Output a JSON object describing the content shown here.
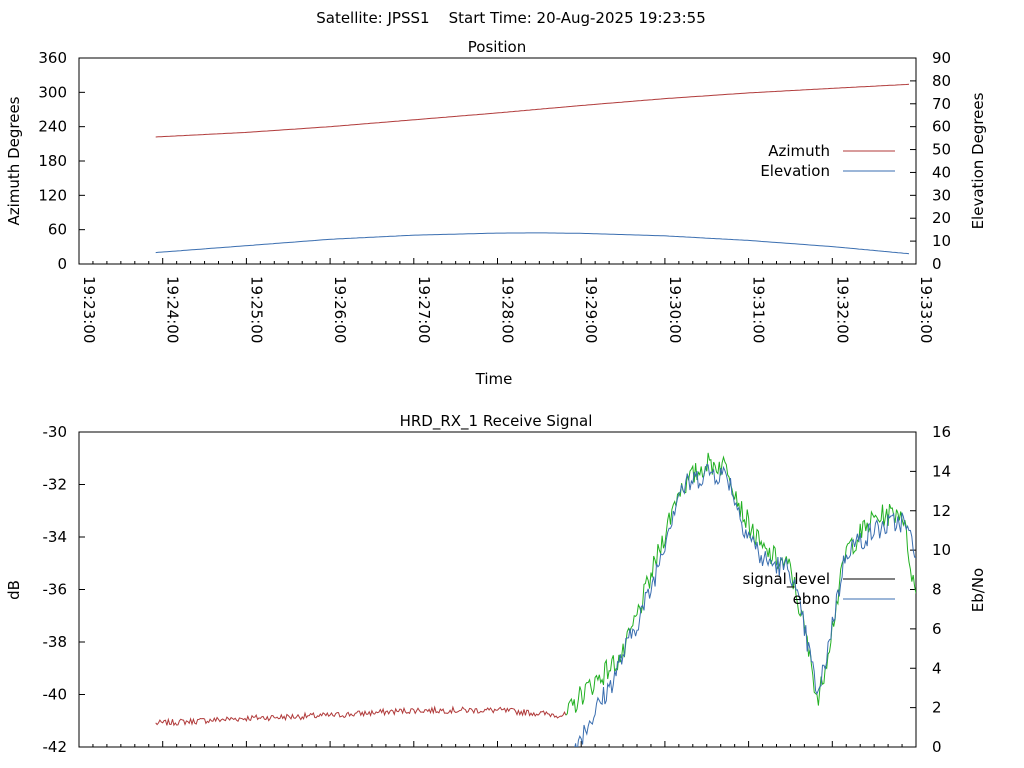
{
  "page_title": "Satellite: JPSS1    Start Time: 20-Aug-2025 19:23:55",
  "colors": {
    "azimuth": "#b03a3a",
    "elevation": "#3a6eb0",
    "signal_level_low": "#b03a3a",
    "signal_level_high": "#22b022",
    "ebno": "#3a6eb0",
    "frame": "#000000"
  },
  "chart_data": [
    {
      "type": "line",
      "title": "Position",
      "xlabel": "Time",
      "ylabel": "Azimuth Degrees",
      "y2label": "Elevation Degrees",
      "ylim": [
        0,
        360
      ],
      "y2lim": [
        0,
        90
      ],
      "y_ticks": [
        "360",
        "300",
        "240",
        "180",
        "120",
        "60",
        "0"
      ],
      "y2_ticks": [
        "90",
        "80",
        "70",
        "60",
        "50",
        "40",
        "30",
        "20",
        "10",
        "0"
      ],
      "x_ticks": [
        "19:23:00",
        "19:24:00",
        "19:25:00",
        "19:26:00",
        "19:27:00",
        "19:28:00",
        "19:29:00",
        "19:30:00",
        "19:31:00",
        "19:32:00",
        "19:33:00"
      ],
      "legend": [
        "Azimuth",
        "Elevation"
      ],
      "legend_position": "right",
      "series": [
        {
          "name": "Azimuth",
          "axis": "y",
          "x": [
            "19:23:55",
            "19:25:00",
            "19:26:00",
            "19:27:00",
            "19:28:00",
            "19:29:00",
            "19:30:00",
            "19:31:00",
            "19:32:00",
            "19:32:55"
          ],
          "values": [
            222,
            230,
            240,
            252,
            264,
            277,
            289,
            299,
            307,
            314
          ]
        },
        {
          "name": "Elevation",
          "axis": "y2",
          "x": [
            "19:23:55",
            "19:25:00",
            "19:26:00",
            "19:27:00",
            "19:28:00",
            "19:28:30",
            "19:29:00",
            "19:30:00",
            "19:31:00",
            "19:32:00",
            "19:32:55"
          ],
          "values": [
            5,
            8,
            10.8,
            12.6,
            13.5,
            13.6,
            13.4,
            12.3,
            10.3,
            7.6,
            4.5
          ]
        }
      ]
    },
    {
      "type": "line",
      "title": "HRD_RX_1 Receive Signal",
      "ylabel": "dB",
      "y2label": "Eb/No",
      "ylim": [
        -42,
        -30
      ],
      "y2lim": [
        0,
        16
      ],
      "y_ticks": [
        "-30",
        "-32",
        "-34",
        "-36",
        "-38",
        "-40",
        "-42"
      ],
      "y2_ticks": [
        "16",
        "14",
        "12",
        "10",
        "8",
        "6",
        "4",
        "2",
        "0"
      ],
      "legend": [
        "signal_level",
        "ebno"
      ],
      "legend_position": "right",
      "series": [
        {
          "name": "signal_level",
          "axis": "y",
          "x": [
            "19:23:55",
            "19:25:00",
            "19:26:00",
            "19:27:00",
            "19:28:00",
            "19:28:50",
            "19:29:00",
            "19:29:30",
            "19:29:50",
            "19:30:10",
            "19:30:30",
            "19:30:45",
            "19:30:55",
            "19:31:10",
            "19:31:30",
            "19:31:40",
            "19:31:50",
            "19:32:10",
            "19:32:30",
            "19:32:50",
            "19:33:00"
          ],
          "values": [
            -41.1,
            -40.9,
            -40.8,
            -40.6,
            -40.6,
            -40.8,
            -40.0,
            -38.5,
            -35.5,
            -32.2,
            -31.2,
            -31.3,
            -33.0,
            -34.5,
            -35.2,
            -37.5,
            -40.3,
            -34.5,
            -33.3,
            -33.0,
            -36.3
          ]
        },
        {
          "name": "ebno",
          "axis": "y2",
          "x": [
            "19:28:55",
            "19:29:20",
            "19:29:50",
            "19:30:10",
            "19:30:30",
            "19:30:45",
            "19:30:55",
            "19:31:10",
            "19:31:30",
            "19:31:40",
            "19:31:50",
            "19:32:10",
            "19:32:30",
            "19:32:50",
            "19:33:00"
          ],
          "values": [
            0,
            3,
            8,
            13,
            14,
            13.8,
            11.5,
            9.5,
            9,
            6,
            2.5,
            10,
            11,
            11.5,
            10
          ]
        }
      ]
    }
  ]
}
